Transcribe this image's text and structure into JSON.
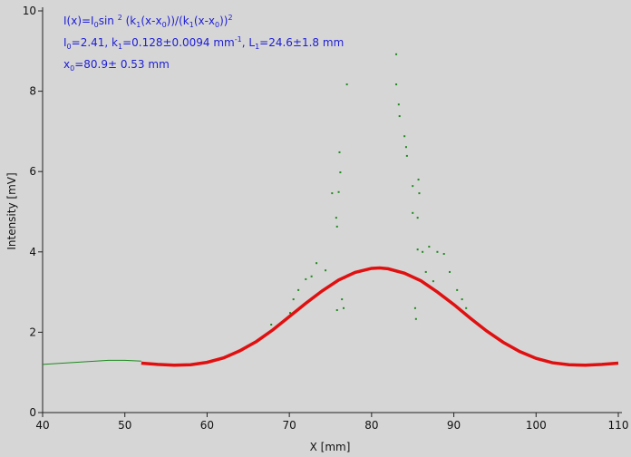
{
  "chart_data": {
    "type": "scatter",
    "xlabel": "X [mm]",
    "ylabel": "Intensity [mV]",
    "xlim": [
      40,
      110
    ],
    "xticks": [
      40,
      50,
      60,
      70,
      80,
      90,
      100,
      110
    ],
    "ylim": [
      0,
      10
    ],
    "yticks": [
      0,
      2,
      4,
      6,
      8,
      10
    ],
    "annotations": [
      [
        "I(x)=I",
        {
          "sub": "0"
        },
        "sin ",
        {
          "sup": "2"
        },
        " (k",
        {
          "sub": "1"
        },
        "(x-x",
        {
          "sub": "0"
        },
        "))/(k",
        {
          "sub": "1"
        },
        "(x-x",
        {
          "sub": "0"
        },
        "))",
        {
          "sup": "2"
        }
      ],
      [
        "I",
        {
          "sub": "0"
        },
        "=2.41,  k",
        {
          "sub": "1"
        },
        "=0.128±0.0094 mm",
        {
          "sup": "-1"
        },
        ",  L",
        {
          "sub": "1"
        },
        "=24.6±1.8 mm"
      ],
      [
        "x",
        {
          "sub": "0"
        },
        "=80.9±  0.53 mm"
      ]
    ],
    "annotation_color": "#1c1cd6",
    "series": [
      {
        "color": "#1e8a1e",
        "style": "line",
        "x": [
          40,
          44,
          48,
          50,
          52
        ],
        "values": [
          1.2,
          1.25,
          1.3,
          1.3,
          1.28
        ]
      },
      {
        "color": "#1e8a1e",
        "style": "points",
        "x": [
          77.0,
          83.0,
          83.0,
          83.3,
          83.4,
          84.0,
          84.2,
          84.3,
          76.1,
          76.2,
          76.0,
          75.2,
          75.7,
          75.8,
          85.0,
          85.7,
          85.8,
          85.0,
          85.6,
          85.6,
          86.2,
          87.0,
          88.0,
          88.8,
          89.5,
          73.3,
          72.7,
          72.0,
          71.1,
          70.5,
          74.4,
          75.8,
          76.4,
          76.6,
          75.8,
          85.3,
          85.4,
          86.6,
          87.5,
          90.4,
          91.0,
          91.5,
          70.1,
          67.8
        ],
        "values": [
          8.17,
          8.92,
          8.17,
          7.67,
          7.38,
          6.88,
          6.61,
          6.39,
          6.48,
          5.98,
          5.49,
          5.46,
          4.85,
          4.63,
          5.64,
          5.8,
          5.46,
          4.97,
          4.85,
          4.06,
          4.0,
          4.13,
          4.0,
          3.95,
          3.5,
          3.72,
          3.39,
          3.32,
          3.05,
          2.82,
          3.54,
          3.27,
          2.82,
          2.6,
          2.55,
          2.6,
          2.33,
          3.5,
          3.27,
          3.05,
          2.82,
          2.6,
          2.48,
          2.19
        ]
      },
      {
        "color": "#e01010",
        "style": "fit",
        "x": [
          52,
          54,
          56,
          58,
          60,
          62,
          64,
          66,
          68,
          70,
          72,
          74,
          76,
          78,
          80,
          81,
          82,
          84,
          86,
          88,
          90,
          92,
          94,
          96,
          98,
          100,
          102,
          104,
          106,
          108,
          110
        ],
        "values": [
          1.23,
          1.2,
          1.18,
          1.19,
          1.25,
          1.36,
          1.54,
          1.77,
          2.06,
          2.39,
          2.72,
          3.03,
          3.3,
          3.49,
          3.59,
          3.6,
          3.58,
          3.47,
          3.28,
          3.0,
          2.69,
          2.35,
          2.03,
          1.75,
          1.52,
          1.35,
          1.24,
          1.19,
          1.18,
          1.2,
          1.23
        ]
      }
    ]
  }
}
